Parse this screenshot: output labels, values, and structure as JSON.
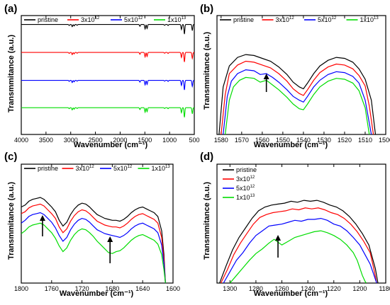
{
  "figure": {
    "panels": [
      {
        "id": "a",
        "letter": "(a)"
      },
      {
        "id": "b",
        "letter": "(b)"
      },
      {
        "id": "c",
        "letter": "(c)"
      },
      {
        "id": "d",
        "letter": "(d)"
      }
    ],
    "colors": {
      "pristine": "#000000",
      "3x10^12": "#ff0000",
      "5x10^12": "#0000ff",
      "1x10^13": "#00dd00"
    }
  },
  "chart_data": [
    {
      "panel": "(a)",
      "type": "line",
      "xlabel": "Wavenumber (cm⁻¹)",
      "ylabel": "Transmmitance (a.u.)",
      "xlim": [
        4000,
        500
      ],
      "x_reversed": true,
      "yticks_shown": false,
      "xticks": [
        "4000",
        "3500",
        "3000",
        "2500",
        "2000",
        "1500",
        "1000",
        "500"
      ],
      "legend": {
        "placement": "top",
        "entries": [
          {
            "base": "pristine",
            "sup": ""
          },
          {
            "base": "3x10",
            "sup": "12"
          },
          {
            "base": "5x10",
            "sup": "12"
          },
          {
            "base": "1x10",
            "sup": "13"
          }
        ]
      },
      "ylim": [
        0,
        1
      ],
      "peaks": [
        {
          "x": 3030,
          "depth": 0.1
        },
        {
          "x": 2970,
          "depth": 0.22
        },
        {
          "x": 2930,
          "depth": 0.15
        },
        {
          "x": 2870,
          "depth": 0.08
        },
        {
          "x": 1600,
          "depth": 0.18
        },
        {
          "x": 1495,
          "depth": 0.45
        },
        {
          "x": 1455,
          "depth": 0.4
        },
        {
          "x": 1100,
          "depth": 0.08
        },
        {
          "x": 1030,
          "depth": 0.1
        },
        {
          "x": 760,
          "depth": 0.5
        },
        {
          "x": 700,
          "depth": 0.95
        },
        {
          "x": 540,
          "depth": 0.6
        }
      ],
      "series": [
        {
          "key": "pristine",
          "baseline": 0.925
        },
        {
          "key": "3x10^12",
          "baseline": 0.69
        },
        {
          "key": "5x10^12",
          "baseline": 0.455
        },
        {
          "key": "1x10^13",
          "baseline": 0.225
        }
      ]
    },
    {
      "panel": "(b)",
      "type": "line",
      "xlabel": "Wavenumber (cm⁻¹)",
      "ylabel": "Transmmitance (a.u.)",
      "xlim": [
        1582,
        1500
      ],
      "x_reversed": true,
      "ylim": [
        0,
        1
      ],
      "yticks_shown": false,
      "xticks": [
        "1580",
        "1570",
        "1560",
        "1550",
        "1540",
        "1530",
        "1520",
        "1510",
        "1500"
      ],
      "legend": {
        "placement": "top",
        "entries": [
          {
            "base": "pristine",
            "sup": ""
          },
          {
            "base": "3x10",
            "sup": "12"
          },
          {
            "base": "5x10",
            "sup": "12"
          },
          {
            "base": "1x10",
            "sup": "13"
          }
        ]
      },
      "arrow_at": 1558,
      "series": [
        {
          "key": "pristine",
          "x": [
            1581,
            1579,
            1576,
            1572,
            1568,
            1564,
            1560,
            1556,
            1552,
            1548,
            1545,
            1542,
            1540,
            1538,
            1535,
            1532,
            1528,
            1524,
            1520,
            1516,
            1513,
            1510,
            1507,
            1505
          ],
          "y": [
            0.0,
            0.5,
            0.72,
            0.81,
            0.84,
            0.83,
            0.8,
            0.77,
            0.71,
            0.63,
            0.55,
            0.5,
            0.48,
            0.54,
            0.64,
            0.72,
            0.78,
            0.81,
            0.8,
            0.76,
            0.69,
            0.58,
            0.36,
            0.0
          ]
        },
        {
          "key": "3x10^12",
          "x": [
            1580,
            1578,
            1576,
            1572,
            1568,
            1564,
            1560,
            1556,
            1552,
            1548,
            1545,
            1542,
            1540,
            1538,
            1535,
            1532,
            1528,
            1524,
            1520,
            1516,
            1513,
            1510,
            1508,
            1506
          ],
          "y": [
            0.0,
            0.42,
            0.64,
            0.73,
            0.77,
            0.76,
            0.73,
            0.7,
            0.64,
            0.56,
            0.48,
            0.43,
            0.41,
            0.47,
            0.57,
            0.65,
            0.71,
            0.74,
            0.73,
            0.69,
            0.62,
            0.51,
            0.3,
            0.0
          ]
        },
        {
          "key": "5x10^12",
          "x": [
            1579,
            1577,
            1575,
            1572,
            1568,
            1564,
            1561,
            1558,
            1555,
            1552,
            1548,
            1545,
            1542,
            1540,
            1538,
            1535,
            1532,
            1528,
            1524,
            1520,
            1516,
            1513,
            1510,
            1507
          ],
          "y": [
            0.0,
            0.4,
            0.56,
            0.64,
            0.68,
            0.67,
            0.63,
            0.64,
            0.6,
            0.55,
            0.47,
            0.4,
            0.36,
            0.34,
            0.4,
            0.5,
            0.57,
            0.63,
            0.66,
            0.65,
            0.61,
            0.54,
            0.36,
            0.0
          ]
        },
        {
          "key": "1x10^13",
          "x": [
            1578,
            1576,
            1574,
            1571,
            1568,
            1564,
            1561,
            1558,
            1555,
            1552,
            1548,
            1545,
            1542,
            1540,
            1538,
            1535,
            1532,
            1528,
            1524,
            1520,
            1516,
            1513,
            1510,
            1508
          ],
          "y": [
            0.0,
            0.36,
            0.5,
            0.57,
            0.6,
            0.59,
            0.55,
            0.57,
            0.52,
            0.47,
            0.39,
            0.32,
            0.27,
            0.26,
            0.32,
            0.42,
            0.5,
            0.56,
            0.59,
            0.58,
            0.54,
            0.46,
            0.28,
            0.0
          ]
        }
      ]
    },
    {
      "panel": "(c)",
      "type": "line",
      "xlabel": "Wavenumber (cm⁻¹)",
      "ylabel": "Transmmitance (a.u.)",
      "xlim": [
        1800,
        1600
      ],
      "x_reversed": true,
      "ylim": [
        0,
        1
      ],
      "yticks_shown": false,
      "xticks": [
        "1800",
        "1760",
        "1720",
        "1680",
        "1640",
        "1600"
      ],
      "legend": {
        "placement": "top",
        "entries": [
          {
            "base": "pristine",
            "sup": ""
          },
          {
            "base": "3x10",
            "sup": "12"
          },
          {
            "base": "5x10",
            "sup": "12"
          },
          {
            "base": "1x10",
            "sup": "13"
          }
        ]
      },
      "arrows_at": [
        1772,
        1683
      ],
      "series": [
        {
          "key": "pristine",
          "x": [
            1800,
            1795,
            1790,
            1785,
            1780,
            1775,
            1770,
            1765,
            1760,
            1755,
            1750,
            1745,
            1740,
            1735,
            1730,
            1725,
            1720,
            1715,
            1710,
            1705,
            1700,
            1695,
            1690,
            1685,
            1680,
            1675,
            1670,
            1665,
            1660,
            1655,
            1650,
            1645,
            1640,
            1635,
            1630,
            1625,
            1620,
            1615,
            1612,
            1610
          ],
          "y": [
            0.8,
            0.82,
            0.86,
            0.88,
            0.89,
            0.9,
            0.88,
            0.84,
            0.8,
            0.75,
            0.66,
            0.6,
            0.64,
            0.72,
            0.78,
            0.82,
            0.84,
            0.83,
            0.8,
            0.76,
            0.72,
            0.7,
            0.68,
            0.67,
            0.66,
            0.66,
            0.65,
            0.67,
            0.7,
            0.74,
            0.77,
            0.79,
            0.8,
            0.78,
            0.76,
            0.74,
            0.7,
            0.55,
            0.3,
            0.0
          ]
        },
        {
          "key": "3x10^12",
          "x": [
            1800,
            1795,
            1790,
            1785,
            1780,
            1775,
            1770,
            1765,
            1760,
            1755,
            1750,
            1745,
            1740,
            1735,
            1730,
            1725,
            1720,
            1715,
            1710,
            1705,
            1700,
            1695,
            1690,
            1685,
            1680,
            1675,
            1670,
            1665,
            1660,
            1655,
            1650,
            1645,
            1640,
            1635,
            1630,
            1625,
            1620,
            1615,
            1612,
            1610
          ],
          "y": [
            0.73,
            0.75,
            0.79,
            0.81,
            0.82,
            0.83,
            0.81,
            0.77,
            0.73,
            0.68,
            0.59,
            0.53,
            0.57,
            0.65,
            0.71,
            0.75,
            0.77,
            0.76,
            0.73,
            0.69,
            0.65,
            0.63,
            0.61,
            0.6,
            0.59,
            0.59,
            0.58,
            0.6,
            0.63,
            0.67,
            0.7,
            0.72,
            0.73,
            0.71,
            0.69,
            0.67,
            0.63,
            0.48,
            0.25,
            0.0
          ]
        },
        {
          "key": "5x10^12",
          "x": [
            1800,
            1795,
            1790,
            1785,
            1780,
            1775,
            1770,
            1765,
            1760,
            1755,
            1750,
            1745,
            1740,
            1735,
            1730,
            1725,
            1720,
            1715,
            1710,
            1705,
            1700,
            1695,
            1690,
            1685,
            1680,
            1675,
            1670,
            1665,
            1660,
            1655,
            1650,
            1645,
            1640,
            1635,
            1630,
            1625,
            1620,
            1615,
            1612,
            1610
          ],
          "y": [
            0.63,
            0.66,
            0.7,
            0.72,
            0.73,
            0.74,
            0.72,
            0.68,
            0.64,
            0.58,
            0.5,
            0.44,
            0.48,
            0.56,
            0.62,
            0.66,
            0.68,
            0.67,
            0.64,
            0.6,
            0.56,
            0.54,
            0.52,
            0.51,
            0.5,
            0.49,
            0.48,
            0.5,
            0.53,
            0.57,
            0.6,
            0.62,
            0.63,
            0.61,
            0.59,
            0.57,
            0.53,
            0.4,
            0.2,
            0.0
          ]
        },
        {
          "key": "1x10^13",
          "x": [
            1800,
            1795,
            1790,
            1785,
            1780,
            1775,
            1770,
            1765,
            1760,
            1755,
            1750,
            1745,
            1740,
            1735,
            1730,
            1725,
            1720,
            1715,
            1710,
            1705,
            1700,
            1695,
            1690,
            1685,
            1680,
            1675,
            1670,
            1665,
            1660,
            1655,
            1650,
            1645,
            1640,
            1635,
            1630,
            1625,
            1620,
            1615,
            1612,
            1610
          ],
          "y": [
            0.52,
            0.55,
            0.59,
            0.61,
            0.62,
            0.63,
            0.61,
            0.57,
            0.53,
            0.47,
            0.39,
            0.33,
            0.37,
            0.45,
            0.51,
            0.55,
            0.57,
            0.56,
            0.53,
            0.49,
            0.44,
            0.4,
            0.36,
            0.32,
            0.31,
            0.33,
            0.34,
            0.37,
            0.41,
            0.45,
            0.48,
            0.5,
            0.51,
            0.49,
            0.47,
            0.45,
            0.41,
            0.3,
            0.14,
            0.0
          ]
        }
      ]
    },
    {
      "panel": "(d)",
      "type": "line",
      "xlabel": "Wavenumber (cm⁻¹)",
      "ylabel": "Transmmitance (a.u.)",
      "xlim": [
        1310,
        1180
      ],
      "x_reversed": true,
      "ylim": [
        0,
        1
      ],
      "yticks_shown": false,
      "xticks": [
        "1300",
        "1280",
        "1260",
        "1240",
        "1220",
        "1200",
        "1180"
      ],
      "legend": {
        "placement": "top-left",
        "entries": [
          {
            "base": "pristine",
            "sup": ""
          },
          {
            "base": "3x10",
            "sup": "12"
          },
          {
            "base": "5x10",
            "sup": "12"
          },
          {
            "base": "1x10",
            "sup": "13"
          }
        ]
      },
      "arrow_at": 1263,
      "series": [
        {
          "key": "pristine",
          "x": [
            1308,
            1303,
            1298,
            1293,
            1288,
            1283,
            1278,
            1273,
            1268,
            1263,
            1258,
            1253,
            1248,
            1243,
            1238,
            1233,
            1228,
            1223,
            1218,
            1213,
            1208,
            1203,
            1198,
            1193,
            1188,
            1186
          ],
          "y": [
            0.0,
            0.18,
            0.35,
            0.48,
            0.58,
            0.68,
            0.76,
            0.8,
            0.82,
            0.83,
            0.84,
            0.86,
            0.85,
            0.87,
            0.86,
            0.87,
            0.85,
            0.82,
            0.8,
            0.76,
            0.7,
            0.62,
            0.52,
            0.4,
            0.15,
            0.0
          ]
        },
        {
          "key": "3x10^12",
          "x": [
            1307,
            1302,
            1297,
            1292,
            1287,
            1282,
            1277,
            1272,
            1267,
            1262,
            1257,
            1252,
            1247,
            1242,
            1237,
            1232,
            1227,
            1222,
            1217,
            1212,
            1207,
            1202,
            1197,
            1192,
            1189,
            1187
          ],
          "y": [
            0.0,
            0.14,
            0.3,
            0.42,
            0.52,
            0.62,
            0.69,
            0.72,
            0.74,
            0.75,
            0.76,
            0.78,
            0.77,
            0.79,
            0.78,
            0.79,
            0.77,
            0.74,
            0.72,
            0.68,
            0.62,
            0.54,
            0.44,
            0.32,
            0.14,
            0.0
          ]
        },
        {
          "key": "5x10^12",
          "x": [
            1305,
            1300,
            1295,
            1290,
            1285,
            1280,
            1275,
            1270,
            1265,
            1260,
            1255,
            1250,
            1245,
            1240,
            1235,
            1230,
            1225,
            1220,
            1215,
            1210,
            1205,
            1200,
            1196,
            1192,
            1189,
            1187
          ],
          "y": [
            0.0,
            0.12,
            0.24,
            0.32,
            0.42,
            0.5,
            0.55,
            0.6,
            0.61,
            0.62,
            0.64,
            0.66,
            0.65,
            0.67,
            0.67,
            0.68,
            0.66,
            0.62,
            0.6,
            0.55,
            0.48,
            0.4,
            0.3,
            0.2,
            0.08,
            0.0
          ]
        },
        {
          "key": "1x10^13",
          "x": [
            1300,
            1295,
            1290,
            1285,
            1280,
            1275,
            1270,
            1266,
            1263,
            1260,
            1255,
            1250,
            1245,
            1240,
            1235,
            1230,
            1225,
            1220,
            1215,
            1210,
            1205,
            1202,
            1200,
            1198,
            1196,
            1195
          ],
          "y": [
            0.0,
            0.08,
            0.16,
            0.24,
            0.31,
            0.36,
            0.42,
            0.46,
            0.43,
            0.4,
            0.44,
            0.48,
            0.5,
            0.52,
            0.54,
            0.55,
            0.53,
            0.5,
            0.46,
            0.4,
            0.32,
            0.24,
            0.16,
            0.08,
            0.02,
            0.0
          ]
        }
      ]
    }
  ]
}
